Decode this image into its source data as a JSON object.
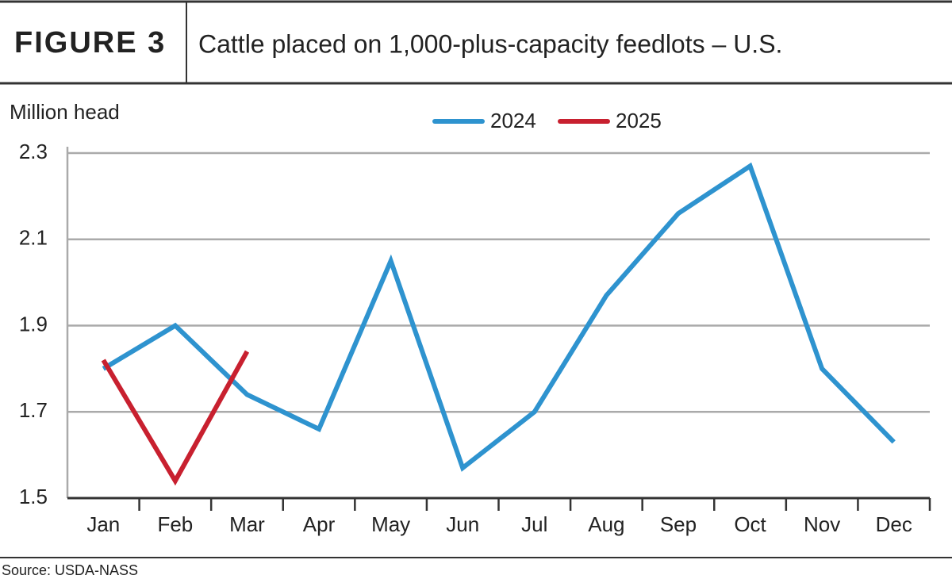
{
  "chart_data": {
    "type": "line",
    "figure_label": "FIGURE 3",
    "title": "Cattle placed on 1,000-plus-capacity feedlots – U.S.",
    "y_label": "Million head",
    "source": "Source: USDA-NASS",
    "categories": [
      "Jan",
      "Feb",
      "Mar",
      "Apr",
      "May",
      "Jun",
      "Jul",
      "Aug",
      "Sep",
      "Oct",
      "Nov",
      "Dec"
    ],
    "series": [
      {
        "name": "2024",
        "color": "#2e93cf",
        "values": [
          1.8,
          1.9,
          1.74,
          1.66,
          2.05,
          1.57,
          1.7,
          1.97,
          2.16,
          2.27,
          1.8,
          1.63
        ]
      },
      {
        "name": "2025",
        "color": "#c8202f",
        "values": [
          1.82,
          1.54,
          1.84,
          null,
          null,
          null,
          null,
          null,
          null,
          null,
          null,
          null
        ]
      }
    ],
    "ylim": [
      1.5,
      2.3
    ],
    "yticks": [
      {
        "value": 1.5,
        "label": "1.5"
      },
      {
        "value": 1.7,
        "label": "1.7"
      },
      {
        "value": 1.9,
        "label": "1.9"
      },
      {
        "value": 2.1,
        "label": "2.1"
      },
      {
        "value": 2.3,
        "label": "2.3"
      }
    ],
    "grid": true,
    "legend": "top"
  }
}
